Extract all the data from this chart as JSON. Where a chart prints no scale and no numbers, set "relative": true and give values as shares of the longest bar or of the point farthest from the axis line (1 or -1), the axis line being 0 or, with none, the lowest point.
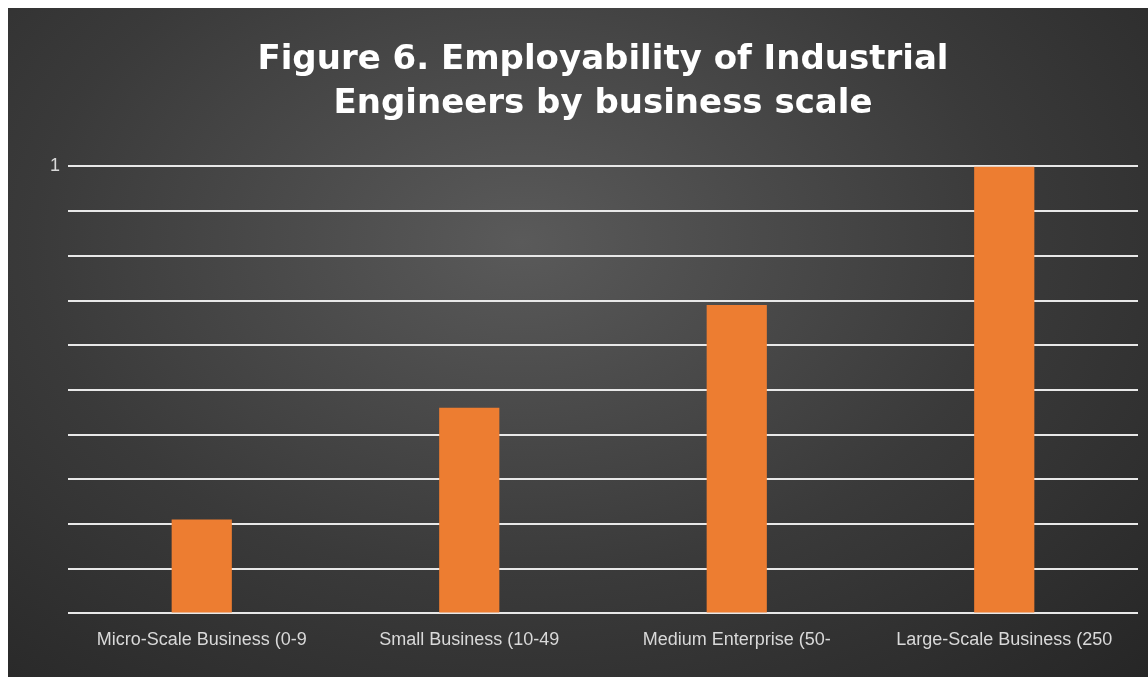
{
  "chart_data": {
    "type": "bar",
    "title": "Figure 6. Employability of Industrial Engineers by business scale",
    "categories": [
      "Micro-Scale Business (0-9",
      "Small Business (10-49",
      "Medium Enterprise (50-",
      "Large-Scale Business (250"
    ],
    "values": [
      0.21,
      0.46,
      0.69,
      1
    ],
    "color": "#ed7d31",
    "relative": true,
    "grid": "y",
    "annotations": [
      "1"
    ]
  }
}
